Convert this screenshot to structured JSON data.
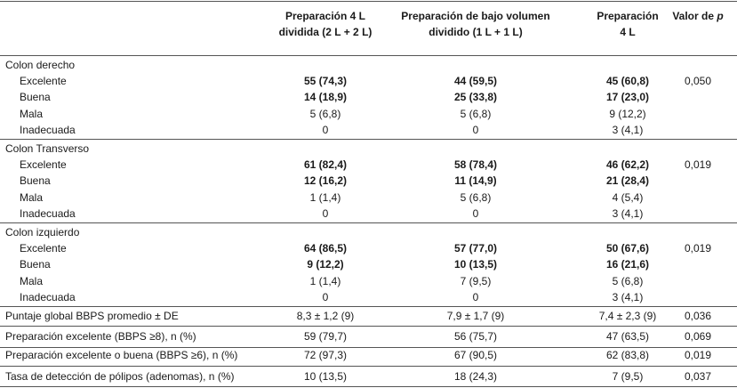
{
  "header": {
    "columns": [
      [
        "Preparación 4 L",
        "dividida (2 L + 2 L)"
      ],
      [
        "Preparación de bajo volumen",
        "dividido (1 L + 1 L)"
      ],
      [
        "Preparación",
        "4 L"
      ],
      [
        "Valor de",
        "p"
      ]
    ]
  },
  "groups": [
    {
      "label": "Colon derecho",
      "p_value": "0,050",
      "rows": [
        {
          "label": "Excelente",
          "bold": true,
          "cells": [
            "55 (74,3)",
            "44 (59,5)",
            "45 (60,8)"
          ]
        },
        {
          "label": "Buena",
          "bold": true,
          "cells": [
            "14 (18,9)",
            "25 (33,8)",
            "17 (23,0)"
          ]
        },
        {
          "label": "Mala",
          "bold": false,
          "cells": [
            "5 (6,8)",
            "5 (6,8)",
            "9 (12,2)"
          ]
        },
        {
          "label": "Inadecuada",
          "bold": false,
          "cells": [
            "0",
            "0",
            "3 (4,1)"
          ]
        }
      ]
    },
    {
      "label": "Colon Transverso",
      "p_value": "0,019",
      "rows": [
        {
          "label": "Excelente",
          "bold": true,
          "cells": [
            "61 (82,4)",
            "58 (78,4)",
            "46 (62,2)"
          ]
        },
        {
          "label": "Buena",
          "bold": true,
          "cells": [
            "12 (16,2)",
            "11 (14,9)",
            "21 (28,4)"
          ]
        },
        {
          "label": "Mala",
          "bold": false,
          "cells": [
            "1 (1,4)",
            "5 (6,8)",
            "4 (5,4)"
          ]
        },
        {
          "label": "Inadecuada",
          "bold": false,
          "cells": [
            "0",
            "0",
            "3 (4,1)"
          ]
        }
      ]
    },
    {
      "label": "Colon izquierdo",
      "p_value": "0,019",
      "rows": [
        {
          "label": "Excelente",
          "bold": true,
          "cells": [
            "64 (86,5)",
            "57 (77,0)",
            "50 (67,6)"
          ]
        },
        {
          "label": "Buena",
          "bold": true,
          "cells": [
            "9 (12,2)",
            "10 (13,5)",
            "16 (21,6)"
          ]
        },
        {
          "label": "Mala",
          "bold": false,
          "cells": [
            "1 (1,4)",
            "7 (9,5)",
            "5 (6,8)"
          ]
        },
        {
          "label": "Inadecuada",
          "bold": false,
          "cells": [
            "0",
            "0",
            "3 (4,1)"
          ]
        }
      ]
    }
  ],
  "summary": [
    {
      "label": "Puntaje global BBPS promedio ± DE",
      "cells": [
        "8,3 ± 1,2 (9)",
        "7,9 ± 1,7 (9)",
        "7,4 ± 2,3 (9)",
        "0,036"
      ]
    },
    {
      "label": "Preparación excelente (BBPS ≥8), n (%)",
      "cells": [
        "59 (79,7)",
        "56 (75,7)",
        "47 (63,5)",
        "0,069"
      ]
    },
    {
      "label": "Preparación excelente o buena (BBPS ≥6), n (%)",
      "cells": [
        "72 (97,3)",
        "67 (90,5)",
        "62 (83,8)",
        "0,019"
      ]
    },
    {
      "label": "Tasa de detección de pólipos (adenomas), n (%)",
      "cells": [
        "10 (13,5)",
        "18 (24,3)",
        "7 (9,5)",
        "0,037"
      ]
    }
  ]
}
